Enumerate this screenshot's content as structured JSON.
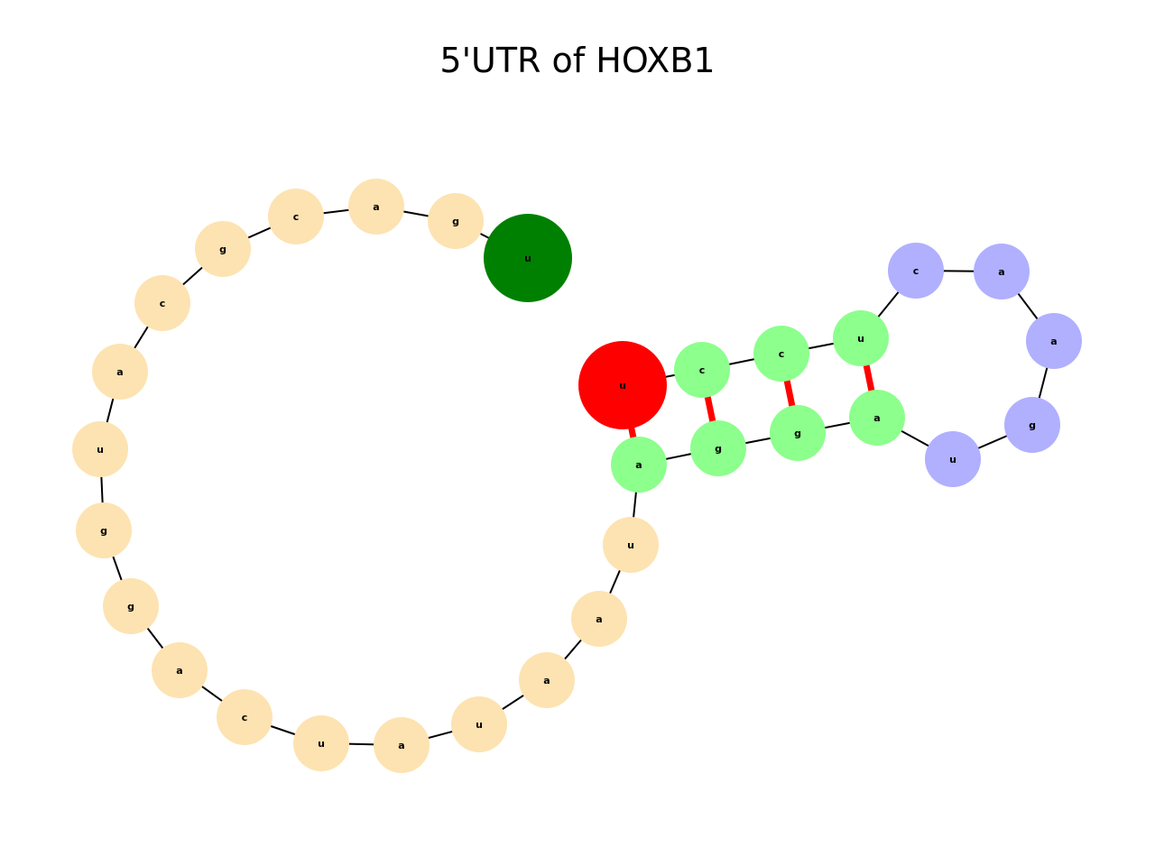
{
  "title": "5'UTR of HOXB1",
  "colors": {
    "background": "#ffffff",
    "backbone": "#000000",
    "pair_bond": "#ff0000",
    "loop": "#fde3b1",
    "stem": "#8cff8c",
    "hairpin": "#b0b0ff",
    "five_prime_end": "#008000",
    "three_prime_end": "#ff0000"
  },
  "nucleotides": [
    {
      "id": 1,
      "base": "u",
      "region": "five_prime_end"
    },
    {
      "id": 2,
      "base": "g",
      "region": "loop"
    },
    {
      "id": 3,
      "base": "a",
      "region": "loop"
    },
    {
      "id": 4,
      "base": "c",
      "region": "loop"
    },
    {
      "id": 5,
      "base": "g",
      "region": "loop"
    },
    {
      "id": 6,
      "base": "c",
      "region": "loop"
    },
    {
      "id": 7,
      "base": "a",
      "region": "loop"
    },
    {
      "id": 8,
      "base": "u",
      "region": "loop"
    },
    {
      "id": 9,
      "base": "g",
      "region": "loop"
    },
    {
      "id": 10,
      "base": "g",
      "region": "loop"
    },
    {
      "id": 11,
      "base": "a",
      "region": "loop"
    },
    {
      "id": 12,
      "base": "c",
      "region": "loop"
    },
    {
      "id": 13,
      "base": "u",
      "region": "loop"
    },
    {
      "id": 14,
      "base": "a",
      "region": "loop"
    },
    {
      "id": 15,
      "base": "u",
      "region": "loop"
    },
    {
      "id": 16,
      "base": "a",
      "region": "loop"
    },
    {
      "id": 17,
      "base": "a",
      "region": "loop"
    },
    {
      "id": 18,
      "base": "u",
      "region": "loop"
    },
    {
      "id": 19,
      "base": "a",
      "region": "stem"
    },
    {
      "id": 20,
      "base": "g",
      "region": "stem"
    },
    {
      "id": 21,
      "base": "g",
      "region": "stem"
    },
    {
      "id": 22,
      "base": "a",
      "region": "stem"
    },
    {
      "id": 23,
      "base": "u",
      "region": "hairpin"
    },
    {
      "id": 24,
      "base": "g",
      "region": "hairpin"
    },
    {
      "id": 25,
      "base": "a",
      "region": "hairpin"
    },
    {
      "id": 26,
      "base": "a",
      "region": "hairpin"
    },
    {
      "id": 27,
      "base": "c",
      "region": "hairpin"
    },
    {
      "id": 28,
      "base": "u",
      "region": "stem"
    },
    {
      "id": 29,
      "base": "c",
      "region": "stem"
    },
    {
      "id": 30,
      "base": "c",
      "region": "stem"
    },
    {
      "id": 31,
      "base": "u",
      "region": "three_prime_end"
    }
  ],
  "base_pairs": [
    [
      19,
      31
    ],
    [
      20,
      30
    ],
    [
      21,
      29
    ],
    [
      22,
      28
    ]
  ]
}
